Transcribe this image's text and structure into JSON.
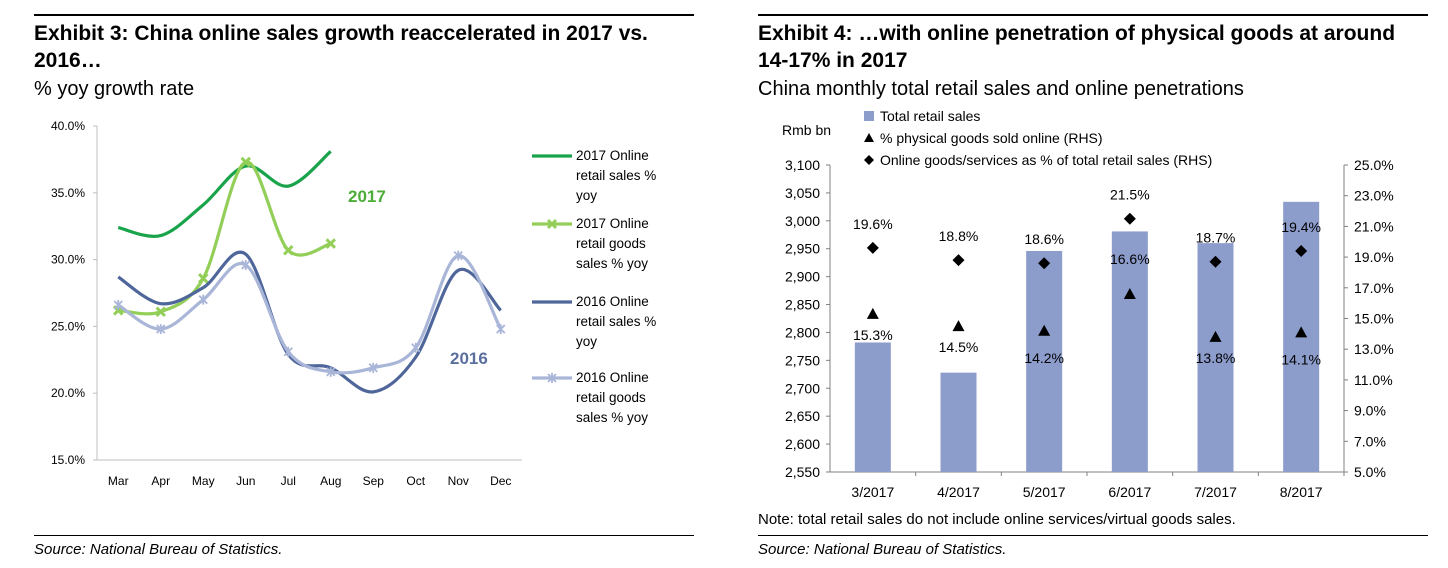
{
  "exhibit3": {
    "title": "Exhibit 3: China online sales growth reaccelerated in 2017 vs. 2016…",
    "subtitle": "% yoy growth rate",
    "source": "Source: National Bureau of Statistics.",
    "annotations": [
      {
        "text": "2017",
        "color": "#4cae38"
      },
      {
        "text": "2016",
        "color": "#5b6f9e"
      }
    ],
    "chart_data": {
      "type": "line",
      "title": "Exhibit 3: China online sales growth reaccelerated in 2017 vs. 2016…",
      "subtitle": "% yoy growth rate",
      "categories": [
        "Mar",
        "Apr",
        "May",
        "Jun",
        "Jul",
        "Aug",
        "Sep",
        "Oct",
        "Nov",
        "Dec"
      ],
      "ylim": [
        15,
        40
      ],
      "yticks": [
        "15.0%",
        "20.0%",
        "25.0%",
        "30.0%",
        "35.0%",
        "40.0%"
      ],
      "grid": false,
      "legend": "right",
      "series": [
        {
          "name": "2017 Online retail sales % yoy",
          "color": "#19a34a",
          "marker": "none",
          "values": [
            32.4,
            31.8,
            34.1,
            37.0,
            35.5,
            38.1,
            null,
            null,
            null,
            null
          ]
        },
        {
          "name": "2017 Online retail goods sales % yoy",
          "color": "#93cf58",
          "marker": "x",
          "values": [
            26.2,
            26.1,
            28.6,
            37.3,
            30.7,
            31.2,
            null,
            null,
            null,
            null
          ]
        },
        {
          "name": "2016 Online retail sales % yoy",
          "color": "#4f669b",
          "marker": "none",
          "values": [
            28.7,
            26.7,
            27.9,
            30.4,
            22.9,
            21.9,
            20.1,
            22.7,
            29.2,
            26.2
          ]
        },
        {
          "name": "2016 Online retail goods sales % yoy",
          "color": "#a9b6d8",
          "marker": "asterisk",
          "values": [
            26.6,
            24.8,
            27.0,
            29.6,
            23.1,
            21.6,
            21.9,
            23.4,
            30.3,
            24.8
          ]
        }
      ]
    }
  },
  "exhibit4": {
    "title": "Exhibit 4: …with online penetration of physical goods at around 14-17% in 2017",
    "subtitle": "China monthly total retail sales and online penetrations",
    "note": "Note: total retail sales do not include online services/virtual goods sales.",
    "source": "Source: National Bureau of Statistics.",
    "chart_data": {
      "type": "bar",
      "title": "Exhibit 4: …with online penetration of physical goods at around 14-17% in 2017",
      "subtitle": "China monthly total retail sales and online penetrations",
      "ylabel": "Rmb bn",
      "categories": [
        "3/2017",
        "4/2017",
        "5/2017",
        "6/2017",
        "7/2017",
        "8/2017"
      ],
      "ylim": [
        2550,
        3100
      ],
      "yticks": [
        "2,550",
        "2,600",
        "2,650",
        "2,700",
        "2,750",
        "2,800",
        "2,850",
        "2,900",
        "2,950",
        "3,000",
        "3,050",
        "3,100"
      ],
      "y2lim": [
        5,
        25
      ],
      "y2ticks": [
        "5.0%",
        "7.0%",
        "9.0%",
        "11.0%",
        "13.0%",
        "15.0%",
        "17.0%",
        "19.0%",
        "21.0%",
        "23.0%",
        "25.0%"
      ],
      "grid": false,
      "legend": "top",
      "bar_color": "#8c9ccb",
      "series": [
        {
          "name": "Total retail sales",
          "axis": "left",
          "kind": "bar",
          "values": [
            2782,
            2728,
            2946,
            2981,
            2960,
            3034
          ]
        },
        {
          "name": "% physical goods sold online (RHS)",
          "axis": "right",
          "kind": "triangle",
          "values": [
            15.3,
            14.5,
            14.2,
            16.6,
            13.8,
            14.1
          ],
          "labels": [
            "15.3%",
            "14.5%",
            "14.2%",
            "16.6%",
            "13.8%",
            "14.1%"
          ]
        },
        {
          "name": "Online goods/services as % of total retail sales (RHS)",
          "axis": "right",
          "kind": "diamond",
          "values": [
            19.6,
            18.8,
            18.6,
            21.5,
            18.7,
            19.4
          ],
          "labels": [
            "19.6%",
            "18.8%",
            "18.6%",
            "21.5%",
            "18.7%",
            "19.4%"
          ]
        }
      ]
    }
  }
}
